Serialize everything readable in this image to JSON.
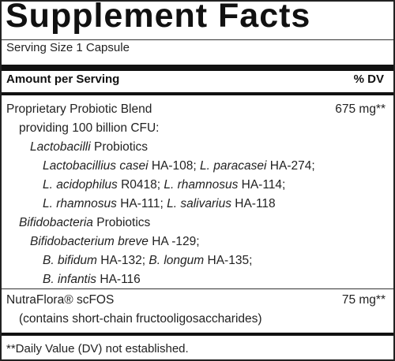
{
  "title": "Supplement Facts",
  "serving": "Serving Size 1 Capsule",
  "header": {
    "left": "Amount per Serving",
    "right": "% DV"
  },
  "blend": {
    "name": "Proprietary Probiotic Blend",
    "amount": "675 mg**",
    "providing": "providing 100 billion CFU:",
    "lacto": {
      "genus": "Lactobacilli",
      "word": " Probiotics"
    },
    "lacto_l1": {
      "a": "Lactobacillius casei",
      "b": " HA-108; ",
      "c": "L. paracasei",
      "d": " HA-274;"
    },
    "lacto_l2": {
      "a": "L. acidophilus",
      "b": " R0418; ",
      "c": "L. rhamnosus",
      "d": " HA-114;"
    },
    "lacto_l3": {
      "a": "L. rhamnosus",
      "b": " HA-111; ",
      "c": "L. salivarius",
      "d": " HA-118"
    },
    "bifido": {
      "genus": "Bifidobacteria",
      "word": " Probiotics"
    },
    "bifido_l1": {
      "a": "Bifidobacterium breve",
      "b": " HA -129;"
    },
    "bifido_l2": {
      "a": "B. bifidum",
      "b": " HA-132; ",
      "c": "B. longum",
      "d": " HA-135;"
    },
    "bifido_l3": {
      "a": "B. infantis",
      "b": " HA-116"
    }
  },
  "nutraflora": {
    "name": "NutraFlora® scFOS",
    "amount": "75 mg**",
    "note": "(contains short-chain fructooligosaccharides)"
  },
  "footnote": "**Daily Value (DV) not established."
}
